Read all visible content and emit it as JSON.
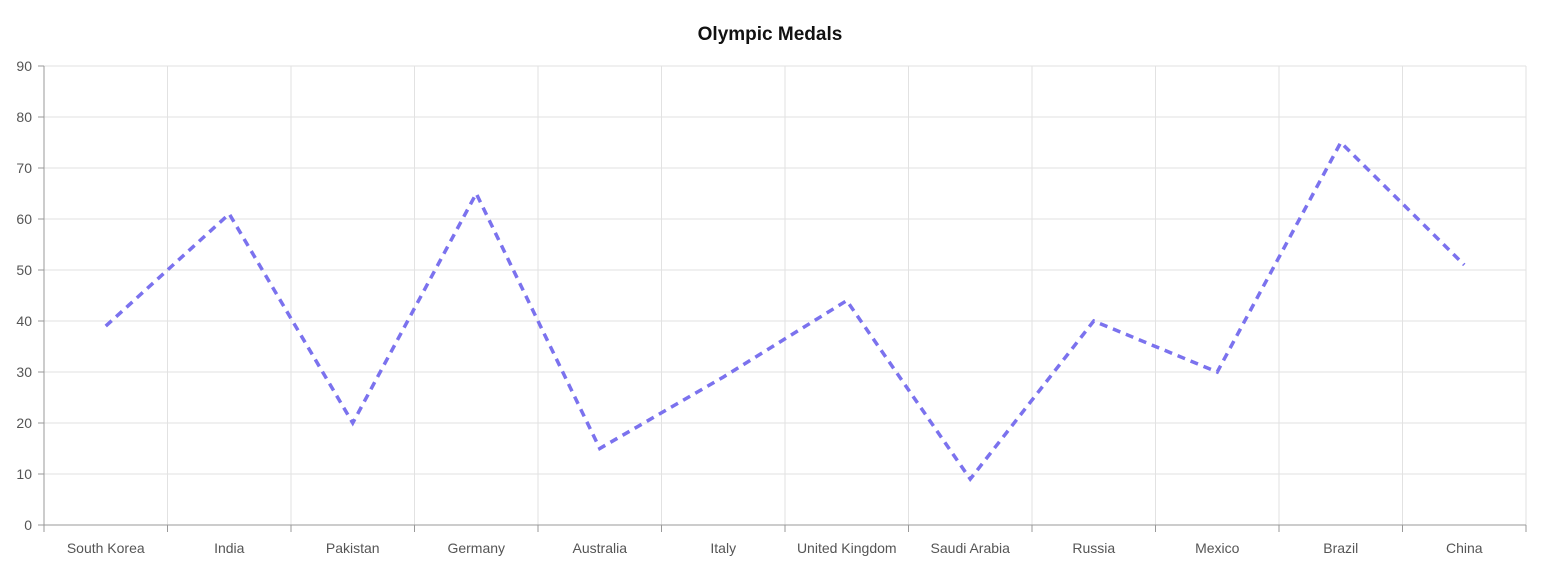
{
  "chart_data": {
    "type": "line",
    "title": "Olympic Medals",
    "xlabel": "",
    "ylabel": "",
    "categories": [
      "South Korea",
      "India",
      "Pakistan",
      "Germany",
      "Australia",
      "Italy",
      "United Kingdom",
      "Saudi Arabia",
      "Russia",
      "Mexico",
      "Brazil",
      "China"
    ],
    "series": [
      {
        "values": [
          39,
          61,
          20,
          65,
          15,
          29,
          44,
          9,
          40,
          30,
          75,
          51
        ],
        "color": "#7b72ee",
        "line_style": "dashed"
      }
    ],
    "ylim": [
      0,
      90
    ],
    "yticks": [
      0,
      10,
      20,
      30,
      40,
      50,
      60,
      70,
      80,
      90
    ],
    "grid": true,
    "legend": "none"
  }
}
